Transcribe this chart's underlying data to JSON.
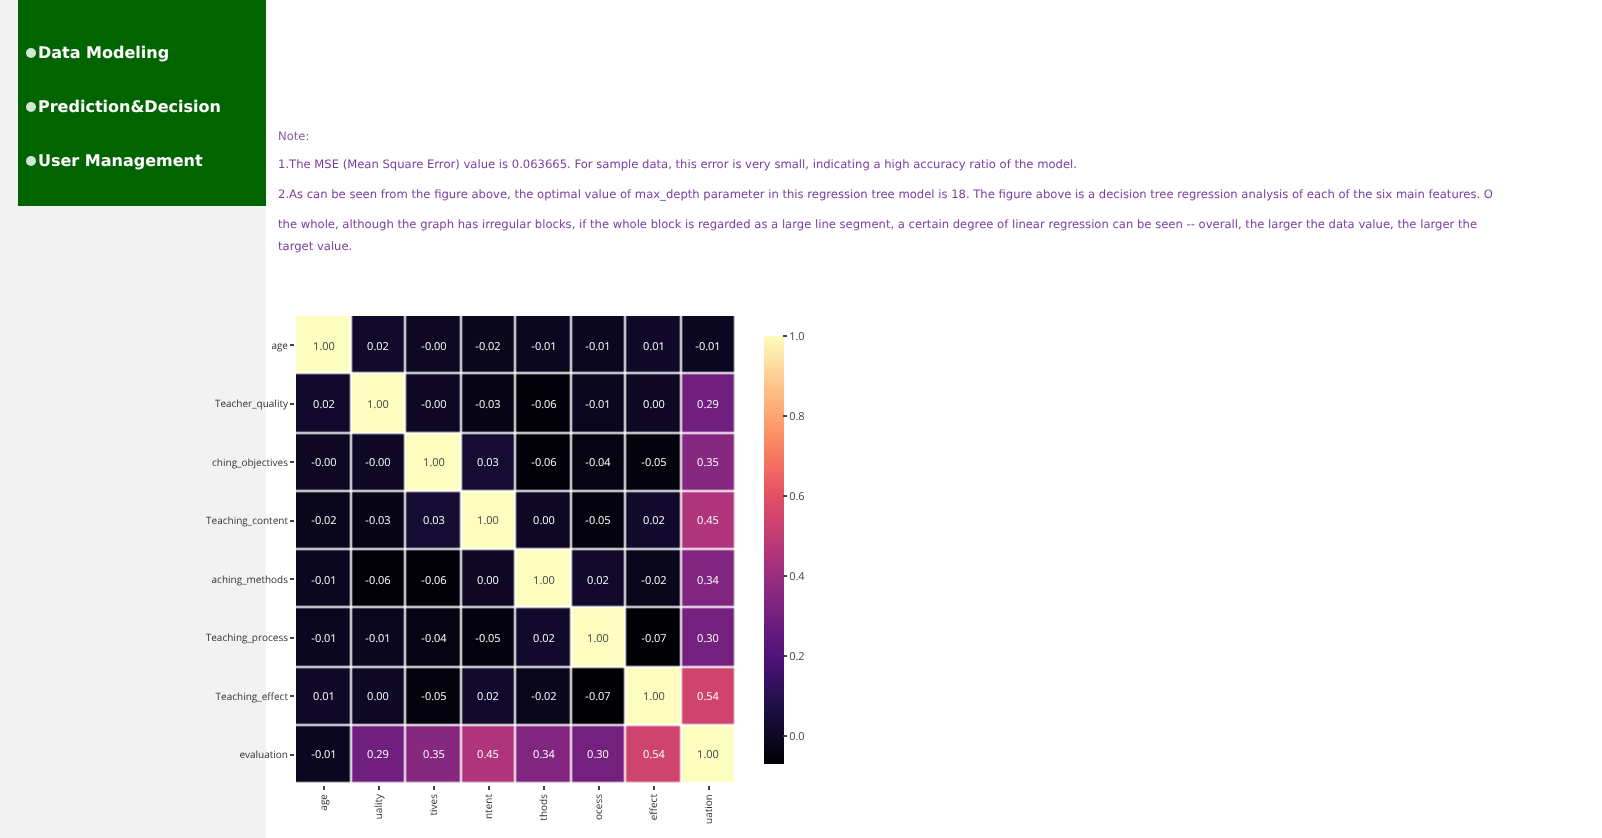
{
  "chart_data": {
    "type": "heatmap",
    "categories": [
      "age",
      "uality",
      "tives",
      "ntent",
      "thods",
      "ocess",
      "effect",
      "uation"
    ],
    "y_categories": [
      "age",
      "Teacher_quality",
      "ching_objectives",
      "Teaching_content",
      "aching_methods",
      "Teaching_process",
      "Teaching_effect",
      "evaluation"
    ],
    "cells": [
      [
        1.0,
        0.02,
        0.0,
        -0.02,
        -0.01,
        -0.01,
        0.01,
        -0.01
      ],
      [
        0.02,
        1.0,
        0.0,
        -0.03,
        -0.06,
        -0.01,
        0.0,
        0.29
      ],
      [
        0.0,
        0.0,
        1.0,
        0.03,
        -0.06,
        -0.04,
        -0.05,
        0.35
      ],
      [
        -0.02,
        -0.03,
        0.03,
        1.0,
        0.0,
        -0.05,
        0.02,
        0.45
      ],
      [
        -0.01,
        -0.06,
        -0.06,
        0.0,
        1.0,
        0.02,
        -0.02,
        0.34
      ],
      [
        -0.01,
        -0.01,
        -0.04,
        -0.05,
        0.02,
        1.0,
        -0.07,
        0.3
      ],
      [
        0.01,
        0.0,
        -0.05,
        0.02,
        -0.02,
        -0.07,
        1.0,
        0.54
      ],
      [
        -0.01,
        0.29,
        0.35,
        0.45,
        0.34,
        0.3,
        0.54,
        1.0
      ]
    ],
    "cell_labels": [
      [
        "1.00",
        "0.02",
        "-0.00",
        "-0.02",
        "-0.01",
        "-0.01",
        "0.01",
        "-0.01"
      ],
      [
        "0.02",
        "1.00",
        "-0.00",
        "-0.03",
        "-0.06",
        "-0.01",
        "0.00",
        "0.29"
      ],
      [
        "-0.00",
        "-0.00",
        "1.00",
        "0.03",
        "-0.06",
        "-0.04",
        "-0.05",
        "0.35"
      ],
      [
        "-0.02",
        "-0.03",
        "0.03",
        "1.00",
        "0.00",
        "-0.05",
        "0.02",
        "0.45"
      ],
      [
        "-0.01",
        "-0.06",
        "-0.06",
        "0.00",
        "1.00",
        "0.02",
        "-0.02",
        "0.34"
      ],
      [
        "-0.01",
        "-0.01",
        "-0.04",
        "-0.05",
        "0.02",
        "1.00",
        "-0.07",
        "0.30"
      ],
      [
        "0.01",
        "0.00",
        "-0.05",
        "0.02",
        "-0.02",
        "-0.07",
        "1.00",
        "0.54"
      ],
      [
        "-0.01",
        "0.29",
        "0.35",
        "0.45",
        "0.34",
        "0.30",
        "0.54",
        "1.00"
      ]
    ],
    "clim": [
      -0.07,
      1.0
    ],
    "cticks": [
      {
        "value": 0,
        "label": "0.0"
      },
      {
        "value": 0.2,
        "label": "0.2"
      },
      {
        "value": 0.4,
        "label": "0.4"
      },
      {
        "value": 0.6,
        "label": "0.6"
      },
      {
        "value": 0.8,
        "label": "0.8"
      },
      {
        "value": 1.0,
        "label": "1.0"
      }
    ],
    "annotations": [
      "Data Modeling",
      "Prediction&Decision",
      "User Management",
      "Note:",
      "1.The MSE (Mean Square Error) value is 0.063665. For sample data, this error is very small, indicating a high accuracy ratio of the model.",
      "2.As can be seen from the figure above, the optimal value of max_depth parameter in this regression tree model is 18. The figure above is a decision tree regression analysis of each of the six main features. O",
      "the whole, although the graph has irregular blocks, if the whole block is regarded as a large line segment, a certain degree of linear regression can be seen -- overall, the larger the data value, the larger the",
      "target value."
    ]
  }
}
